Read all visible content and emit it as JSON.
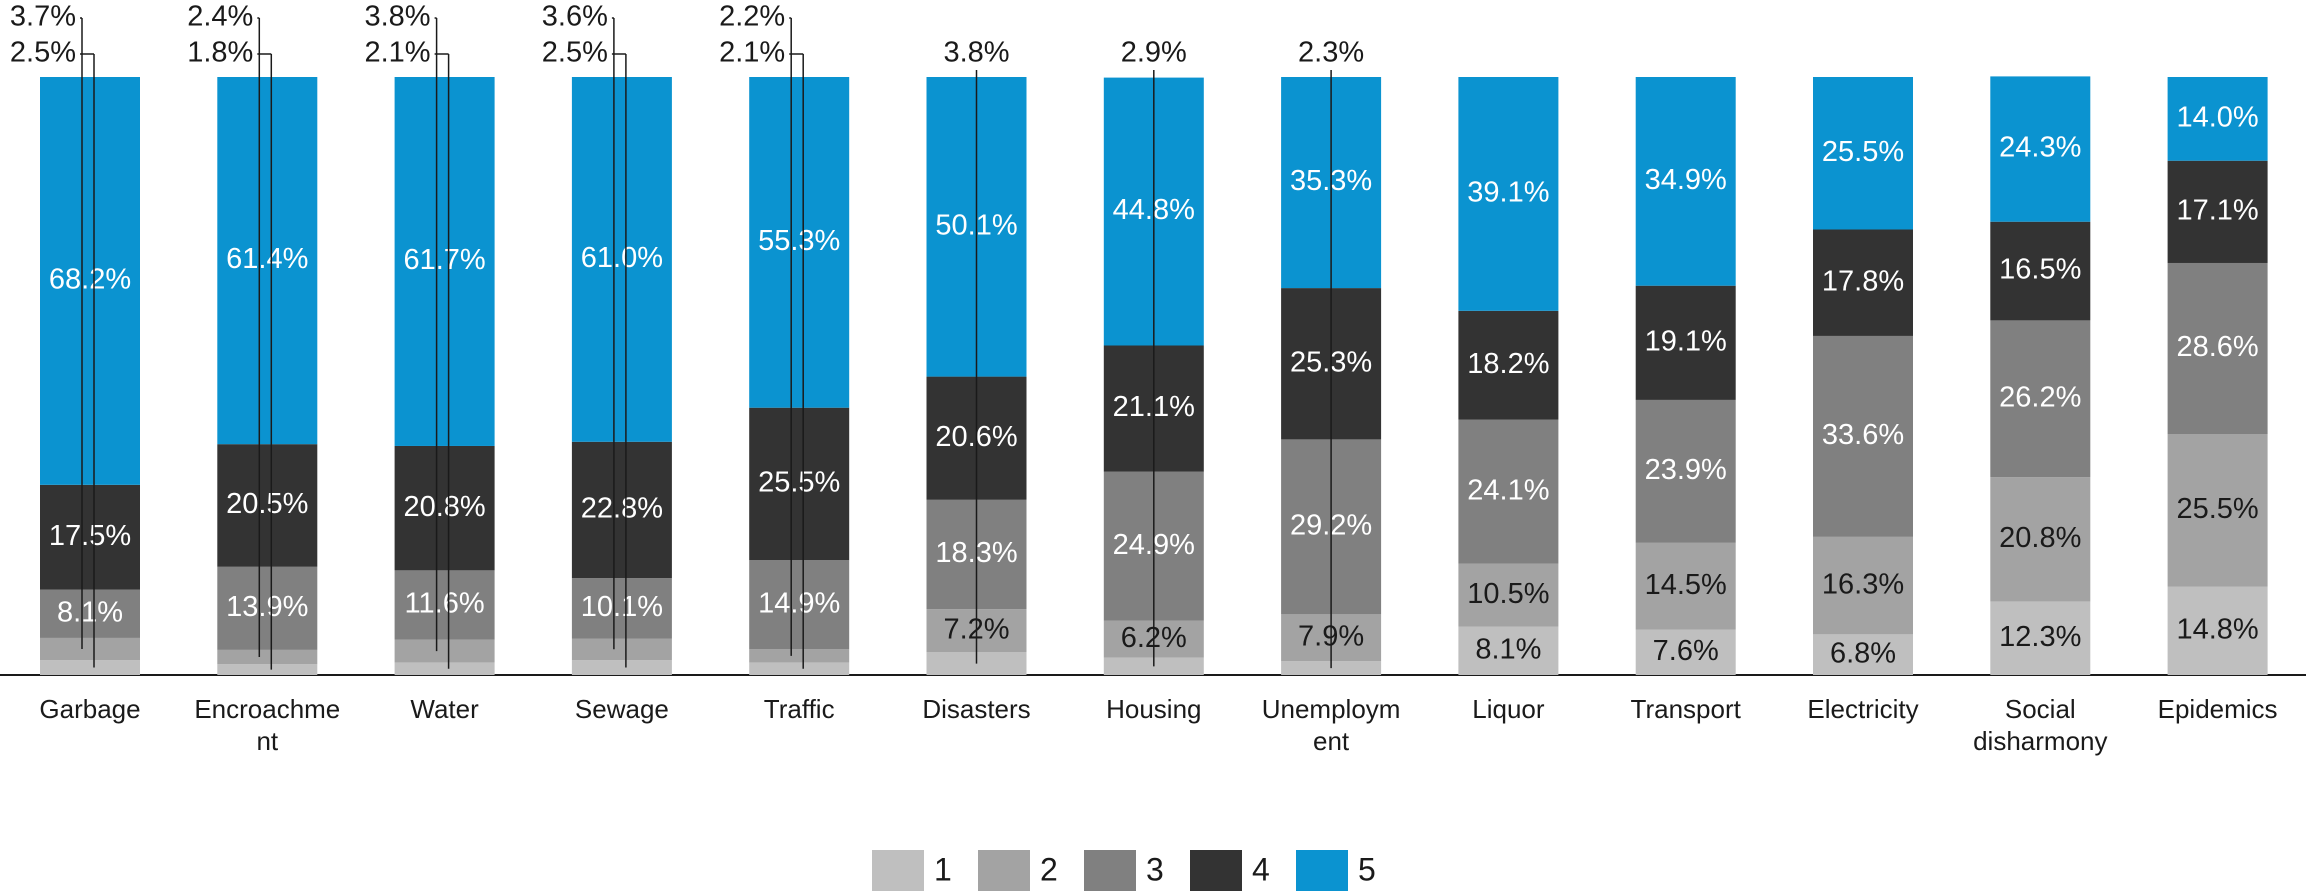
{
  "chart_data": {
    "type": "stacked_bar",
    "categories": [
      "Garbage",
      "Encroachment",
      "Water",
      "Sewage",
      "Traffic",
      "Disasters",
      "Housing",
      "Unemployment",
      "Liquor",
      "Transport",
      "Electricity",
      "Social disharmony",
      "Epidemics"
    ],
    "ylim": [
      0,
      100
    ],
    "legend": "bottom",
    "series": [
      {
        "name": "1",
        "color": "#bfbfbf",
        "label_color": "#1a1a1a",
        "values": [
          2.5,
          1.8,
          2.1,
          2.5,
          2.1,
          3.8,
          2.9,
          2.3,
          8.1,
          7.6,
          6.8,
          12.3,
          14.8
        ],
        "value_labels": [
          "2.5%",
          "1.8%",
          "2.1%",
          "2.5%",
          "2.1%",
          "3.8%",
          "2.9%",
          "2.3%",
          "8.1%",
          "7.6%",
          "6.8%",
          "12.3%",
          "14.8%"
        ]
      },
      {
        "name": "2",
        "color": "#a3a3a3",
        "label_color": "#1a1a1a",
        "values": [
          3.7,
          2.4,
          3.8,
          3.6,
          2.2,
          7.2,
          6.2,
          7.9,
          10.5,
          14.5,
          16.3,
          20.8,
          25.5
        ],
        "value_labels": [
          "3.7%",
          "2.4%",
          "3.8%",
          "3.6%",
          "2.2%",
          "7.2%",
          "6.2%",
          "7.9%",
          "10.5%",
          "14.5%",
          "16.3%",
          "20.8%",
          "25.5%"
        ]
      },
      {
        "name": "3",
        "color": "#808080",
        "label_color": "#ffffff",
        "values": [
          8.1,
          13.9,
          11.6,
          10.1,
          14.9,
          18.3,
          24.9,
          29.2,
          24.1,
          23.9,
          33.6,
          26.2,
          28.6
        ],
        "value_labels": [
          "8.1%",
          "13.9%",
          "11.6%",
          "10.1%",
          "14.9%",
          "18.3%",
          "24.9%",
          "29.2%",
          "24.1%",
          "23.9%",
          "33.6%",
          "26.2%",
          "28.6%"
        ]
      },
      {
        "name": "4",
        "color": "#333333",
        "label_color": "#ffffff",
        "values": [
          17.5,
          20.5,
          20.8,
          22.8,
          25.5,
          20.6,
          21.1,
          25.3,
          18.2,
          19.1,
          17.8,
          16.5,
          17.1
        ],
        "value_labels": [
          "17.5%",
          "20.5%",
          "20.8%",
          "22.8%",
          "25.5%",
          "20.6%",
          "21.1%",
          "25.3%",
          "18.2%",
          "19.1%",
          "17.8%",
          "16.5%",
          "17.1%"
        ]
      },
      {
        "name": "5",
        "color": "#0b93d0",
        "label_color": "#ffffff",
        "values": [
          68.2,
          61.4,
          61.7,
          61.0,
          55.3,
          50.1,
          44.8,
          35.3,
          39.1,
          34.9,
          25.5,
          24.3,
          14.0
        ],
        "value_labels": [
          "68.2%",
          "61.4%",
          "61.7%",
          "61.0%",
          "55.3%",
          "50.1%",
          "44.8%",
          "35.3%",
          "39.1%",
          "34.9%",
          "25.5%",
          "24.3%",
          "14.0%"
        ]
      }
    ]
  }
}
